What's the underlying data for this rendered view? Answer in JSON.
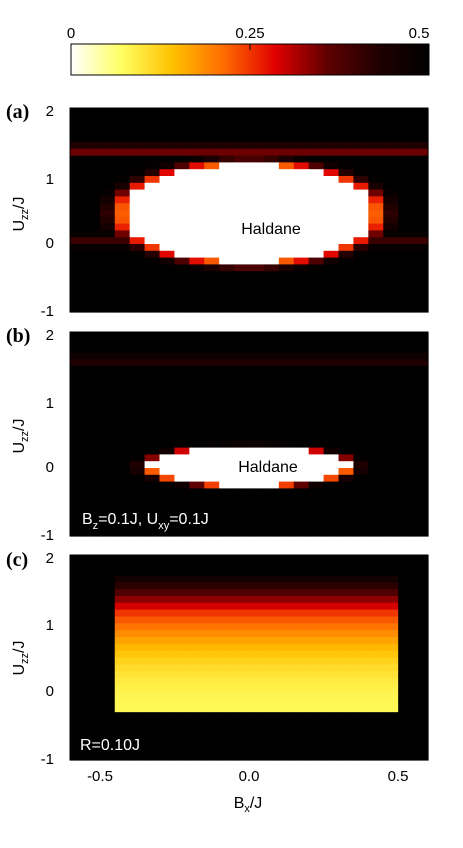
{
  "colorbar": {
    "ticks": [
      0,
      0.25,
      0.5
    ],
    "tick_labels": [
      "0",
      "0.25",
      "0.5"
    ],
    "colormap": [
      "#ffffff",
      "#ffff60",
      "#ffc000",
      "#ff6a00",
      "#e00000",
      "#600000",
      "#200000",
      "#000000"
    ]
  },
  "axes": {
    "xlabel_main": "B",
    "xlabel_sub": "x",
    "xlabel_tail": "/J",
    "ylabel_main": "U",
    "ylabel_sub": "zz",
    "ylabel_tail": "/J",
    "xticks": [
      -0.5,
      0.0,
      0.5
    ],
    "xtick_labels": [
      "-0.5",
      "0.0",
      "0.5"
    ],
    "yticks": [
      -1,
      0,
      1,
      2
    ],
    "ytick_labels": [
      "-1",
      "0",
      "1",
      "2"
    ],
    "xlim": [
      -0.6,
      0.6
    ],
    "ylim": [
      -1,
      2
    ]
  },
  "panels": [
    {
      "label": "(a)",
      "annotation": "Haldane",
      "note": null
    },
    {
      "label": "(b)",
      "annotation": "Haldane",
      "note": {
        "parts": [
          "B",
          "z",
          "=0.1J, U",
          "xy",
          "=0.1J"
        ]
      }
    },
    {
      "label": "(c)",
      "annotation": null,
      "note": {
        "parts": [
          "R=0.10J"
        ]
      }
    }
  ],
  "chart_data": [
    {
      "type": "heatmap",
      "panel": "(a)",
      "x": {
        "range": [
          -0.6,
          0.6
        ],
        "step": 0.05
      },
      "y": {
        "range": [
          -1,
          2
        ],
        "step": 0.1
      },
      "value_range": [
        0,
        0.5
      ],
      "regions": [
        {
          "label": "Haldane",
          "value": 0,
          "center": [
            0.0,
            0.45
          ],
          "half_width": 0.42,
          "half_height": 0.72
        },
        {
          "kind": "line",
          "y": 1.38,
          "value": 0.32,
          "x_from": -0.6,
          "x_to": 0.6
        },
        {
          "kind": "line",
          "y": 0.05,
          "value": 0.4,
          "x_from": -0.6,
          "x_to": 0.6
        }
      ]
    },
    {
      "type": "heatmap",
      "panel": "(b)",
      "x": {
        "range": [
          -0.6,
          0.6
        ],
        "step": 0.05
      },
      "y": {
        "range": [
          -1,
          2
        ],
        "step": 0.1
      },
      "value_range": [
        0,
        0.5
      ],
      "regions": [
        {
          "label": "Haldane",
          "value": 0,
          "center": [
            0.0,
            0.02
          ],
          "half_width": 0.33,
          "half_height": 0.28
        },
        {
          "kind": "line",
          "y": 1.58,
          "value": 0.42,
          "x_from": -0.6,
          "x_to": 0.6
        }
      ]
    },
    {
      "type": "heatmap",
      "panel": "(c)",
      "x": {
        "range": [
          -0.6,
          0.6
        ],
        "step": 0.05
      },
      "y": {
        "range": [
          -1,
          2
        ],
        "step": 0.1
      },
      "value_range": [
        0,
        0.5
      ],
      "regions": [
        {
          "value_center": 0.08,
          "x_from": -0.47,
          "x_to": 0.5,
          "y_from": -0.25,
          "y_to": 1.15
        }
      ]
    }
  ]
}
